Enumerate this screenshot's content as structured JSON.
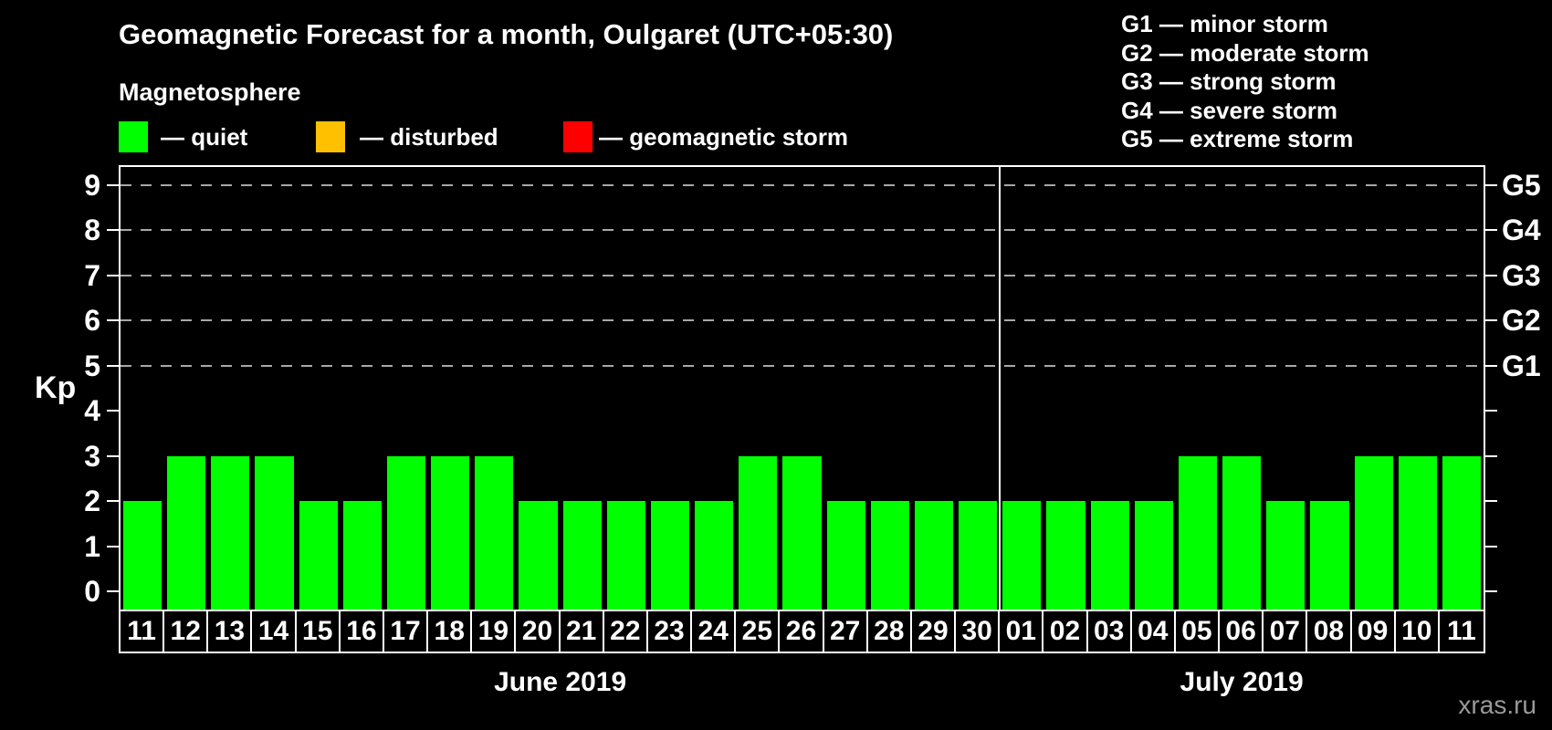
{
  "header": {
    "title": "Geomagnetic Forecast for a month, Oulgaret (UTC+05:30)",
    "subtitle": "Magnetosphere"
  },
  "legend": {
    "items": [
      {
        "label": "— quiet",
        "color": "#00ff00"
      },
      {
        "label": "— disturbed",
        "color": "#ffc000"
      },
      {
        "label": "— geomagnetic storm",
        "color": "#ff0000"
      }
    ]
  },
  "g_scale_legend": [
    "G1 — minor storm",
    "G2 — moderate storm",
    "G3 — strong storm",
    "G4 — severe storm",
    "G5 — extreme storm"
  ],
  "watermark": "xras.ru",
  "chart_data": {
    "type": "bar",
    "title": "Geomagnetic Forecast for a month, Oulgaret (UTC+05:30)",
    "ylabel": "Kp",
    "ylim": [
      -0.4,
      9.4
    ],
    "yticks": [
      0,
      1,
      2,
      3,
      4,
      5,
      6,
      7,
      8,
      9
    ],
    "gridline_values": [
      5,
      6,
      7,
      8,
      9
    ],
    "right_axis_labels": [
      {
        "value": 5,
        "label": "G1"
      },
      {
        "value": 6,
        "label": "G2"
      },
      {
        "value": 7,
        "label": "G3"
      },
      {
        "value": 8,
        "label": "G4"
      },
      {
        "value": 9,
        "label": "G5"
      }
    ],
    "bar_color": "#00ff00",
    "bar_status": "quiet",
    "months": [
      {
        "label": "June 2019",
        "days": [
          "11",
          "12",
          "13",
          "14",
          "15",
          "16",
          "17",
          "18",
          "19",
          "20",
          "21",
          "22",
          "23",
          "24",
          "25",
          "26",
          "27",
          "28",
          "29",
          "30"
        ],
        "kp_values": [
          2,
          3,
          3,
          3,
          2,
          2,
          3,
          3,
          3,
          2,
          2,
          2,
          2,
          2,
          3,
          3,
          2,
          2,
          2,
          2
        ]
      },
      {
        "label": "July 2019",
        "days": [
          "01",
          "02",
          "03",
          "04",
          "05",
          "06",
          "07",
          "08",
          "09",
          "10",
          "11"
        ],
        "kp_values": [
          2,
          2,
          2,
          2,
          3,
          3,
          2,
          2,
          3,
          3,
          3
        ]
      }
    ]
  }
}
